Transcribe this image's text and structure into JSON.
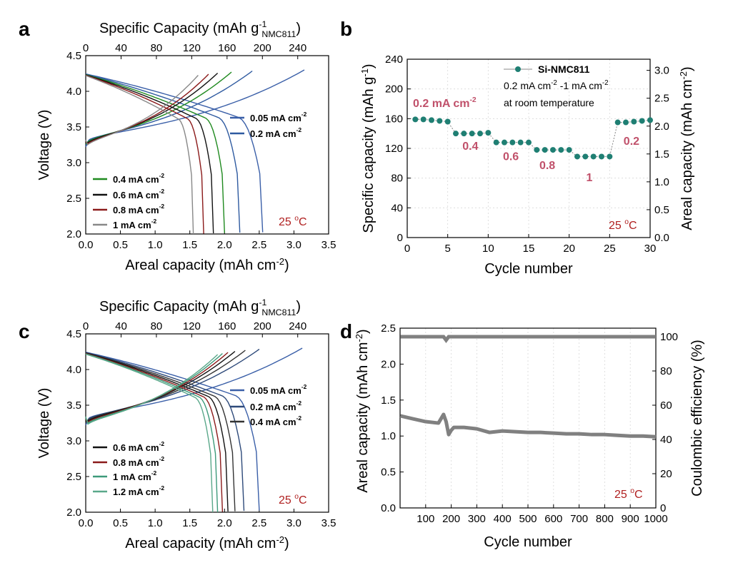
{
  "chart_data": [
    {
      "panel": "a",
      "type": "line",
      "title": "",
      "xlabel": "Areal capacity (mAh cm",
      "xlabel_sup": "-2",
      "ylabel": "Voltage (V)",
      "top_label": "Specific Capacity (mAh g",
      "top_label_sup": "-1",
      "top_label_sub": "NMC811",
      "xlim": [
        0,
        3.5
      ],
      "ylim": [
        2.0,
        4.5
      ],
      "xticks": [
        "0.0",
        "0.5",
        "1.0",
        "1.5",
        "2.0",
        "2.5",
        "3.0",
        "3.5"
      ],
      "yticks": [
        "2.0",
        "2.5",
        "3.0",
        "3.5",
        "4.0",
        "4.5"
      ],
      "top_ticks": [
        "0",
        "40",
        "80",
        "120",
        "160",
        "200",
        "240"
      ],
      "temperature": "25 ",
      "temp_sup": "o",
      "temp_unit": "C",
      "series": [
        {
          "name": "0.05 mA cm",
          "color": "#3a5fa8",
          "discharge_end": 2.55,
          "charge_end": 3.15
        },
        {
          "name": "0.2 mA cm",
          "color": "#2e5aa0",
          "discharge_end": 2.22,
          "charge_end": 2.4
        },
        {
          "name": "0.4 mA cm",
          "color": "#1f8a1f",
          "discharge_end": 2.0,
          "charge_end": 2.1
        },
        {
          "name": "0.6 mA cm",
          "color": "#111111",
          "discharge_end": 1.84,
          "charge_end": 1.9
        },
        {
          "name": "0.8 mA cm",
          "color": "#8b1a1a",
          "discharge_end": 1.7,
          "charge_end": 1.77
        },
        {
          "name": "1 mA cm",
          "color": "#888888",
          "discharge_end": 1.55,
          "charge_end": 1.62
        }
      ]
    },
    {
      "panel": "b",
      "type": "scatter",
      "xlabel": "Cycle number",
      "ylabel": "Specific capacity (mAh g",
      "ylabel_sup": "-1",
      "y2label": "Areal capacity (mAh cm",
      "y2label_sup": "-2",
      "xlim": [
        0,
        30
      ],
      "ylim": [
        0,
        240
      ],
      "y2lim": [
        0,
        3.2
      ],
      "xticks": [
        "0",
        "5",
        "10",
        "15",
        "20",
        "25",
        "30"
      ],
      "yticks": [
        "0",
        "40",
        "80",
        "120",
        "160",
        "200",
        "240"
      ],
      "y2ticks": [
        "0.0",
        "0.5",
        "1.0",
        "1.5",
        "2.0",
        "2.5",
        "3.0"
      ],
      "legend": "Si-NMC811",
      "note1": "0.2 mA cm",
      "note1_sup": "-2",
      "note1_mid": " -1 mA cm",
      "note1_sup2": "-2",
      "note2": "at room temperature",
      "rate_labels": [
        "0.2 mA cm",
        "0.4",
        "0.6",
        "0.8",
        "1",
        "0.2"
      ],
      "rate_label_sup": "-2",
      "temperature": "25 ",
      "temp_sup": "o",
      "temp_unit": "C",
      "color": "#1f7f73",
      "x": [
        1,
        2,
        3,
        4,
        5,
        6,
        7,
        8,
        9,
        10,
        11,
        12,
        13,
        14,
        15,
        16,
        17,
        18,
        19,
        20,
        21,
        22,
        23,
        24,
        25,
        26,
        27,
        28,
        29,
        30
      ],
      "values": [
        159,
        159,
        158,
        157,
        156,
        140,
        140,
        140,
        140,
        141,
        128,
        128,
        128,
        128,
        128,
        118,
        118,
        118,
        118,
        118,
        109,
        109,
        109,
        109,
        109,
        155,
        155,
        156,
        157,
        158
      ]
    },
    {
      "panel": "c",
      "type": "line",
      "xlabel": "Areal capacity (mAh cm",
      "xlabel_sup": "-2",
      "ylabel": "Voltage (V)",
      "top_label": "Specific Capacity (mAh g",
      "top_label_sup": "-1",
      "top_label_sub": "NMC811",
      "xlim": [
        0,
        3.5
      ],
      "ylim": [
        2.0,
        4.5
      ],
      "xticks": [
        "0.0",
        "0.5",
        "1.0",
        "1.5",
        "2.0",
        "2.5",
        "3.0",
        "3.5"
      ],
      "yticks": [
        "2.0",
        "2.5",
        "3.0",
        "3.5",
        "4.0",
        "4.5"
      ],
      "top_ticks": [
        "0",
        "40",
        "80",
        "120",
        "160",
        "200",
        "240"
      ],
      "temperature": "25 ",
      "temp_sup": "o",
      "temp_unit": "C",
      "series": [
        {
          "name": "0.05 mA cm",
          "color": "#3a5fa8",
          "discharge_end": 2.5,
          "charge_end": 3.12
        },
        {
          "name": "0.2 mA cm",
          "color": "#2e4a7a",
          "discharge_end": 2.28,
          "charge_end": 2.5
        },
        {
          "name": "0.4 mA cm",
          "color": "#333333",
          "discharge_end": 2.15,
          "charge_end": 2.3
        },
        {
          "name": "0.6 mA cm",
          "color": "#111111",
          "discharge_end": 2.05,
          "charge_end": 2.15
        },
        {
          "name": "0.8 mA cm",
          "color": "#8b1a1a",
          "discharge_end": 1.97,
          "charge_end": 2.05
        },
        {
          "name": "1 mA cm",
          "color": "#3d9a7a",
          "discharge_end": 1.9,
          "charge_end": 1.97
        },
        {
          "name": "1.2 mA cm",
          "color": "#5aa88a",
          "discharge_end": 1.83,
          "charge_end": 1.9
        }
      ]
    },
    {
      "panel": "d",
      "type": "line",
      "xlabel": "Cycle number",
      "ylabel": "Areal capacity (mAh cm",
      "ylabel_sup": "-2",
      "y2label": "Coulombic efficiency (%)",
      "xlim": [
        0,
        1000
      ],
      "ylim": [
        0,
        2.5
      ],
      "y2lim": [
        0,
        105
      ],
      "xticks": [
        "100",
        "200",
        "300",
        "400",
        "500",
        "600",
        "700",
        "800",
        "900",
        "1000"
      ],
      "yticks": [
        "0.0",
        "0.5",
        "1.0",
        "1.5",
        "2.0",
        "2.5"
      ],
      "y2ticks": [
        "0",
        "20",
        "40",
        "60",
        "80",
        "100"
      ],
      "temperature": "25 ",
      "temp_sup": "o",
      "temp_unit": "C",
      "color": "#808080",
      "capacity_x": [
        1,
        50,
        100,
        150,
        170,
        180,
        190,
        200,
        210,
        250,
        300,
        350,
        400,
        450,
        500,
        550,
        600,
        650,
        700,
        750,
        800,
        850,
        900,
        950,
        1000
      ],
      "capacity_y": [
        1.28,
        1.24,
        1.2,
        1.18,
        1.3,
        1.2,
        1.02,
        1.08,
        1.12,
        1.12,
        1.1,
        1.05,
        1.07,
        1.06,
        1.05,
        1.05,
        1.04,
        1.03,
        1.03,
        1.02,
        1.02,
        1.01,
        1.0,
        1.0,
        0.99
      ],
      "ce_x": [
        1,
        100,
        170,
        180,
        190,
        200,
        300,
        400,
        500,
        600,
        700,
        800,
        900,
        1000
      ],
      "ce_y": [
        100,
        100,
        100,
        98,
        100,
        100,
        100,
        100,
        100,
        100,
        100,
        100,
        100,
        100
      ]
    }
  ],
  "panel_labels": [
    "a",
    "b",
    "c",
    "d"
  ]
}
